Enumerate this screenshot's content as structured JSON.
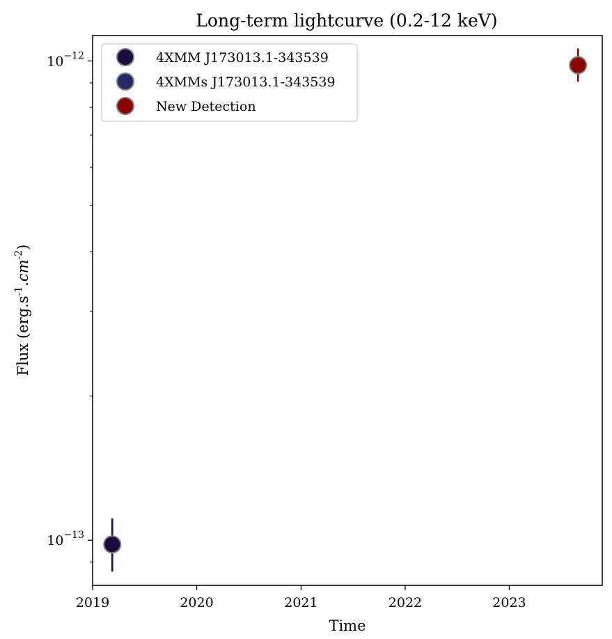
{
  "chart_data": {
    "type": "scatter",
    "title": "Long-term lightcurve (0.2-12 keV)",
    "xlabel": "Time",
    "ylabel": "Flux (erg.s",
    "ylabel_unit_parts": [
      "-1",
      ".cm",
      "-2",
      ")"
    ],
    "y_scale": "log",
    "xlim": [
      "2019-01-01",
      "2023-11-23"
    ],
    "ylim": [
      8.05e-14,
      1.13e-12
    ],
    "x_ticks": [
      "2019",
      "2020",
      "2021",
      "2022",
      "2023"
    ],
    "y_major_ticks": [
      {
        "value": 1e-13,
        "base": "10",
        "exp": "−13"
      },
      {
        "value": 1e-12,
        "base": "10",
        "exp": "−12"
      }
    ],
    "grid": false,
    "legend_position": "top-left",
    "series": [
      {
        "name": "4XMM J173013.1-343539",
        "color": "#1a0a3d",
        "points": [
          {
            "x": "2019-03-11",
            "y": 9.8e-14,
            "y_low": 8.6e-14,
            "y_high": 1.11e-13
          }
        ]
      },
      {
        "name": "4XMMs J173013.1-343539",
        "color": "#252a66",
        "points": []
      },
      {
        "name": "New Detection",
        "color": "#8b0000",
        "points": [
          {
            "x": "2023-08-30",
            "y": 9.8e-13,
            "y_low": 9.05e-13,
            "y_high": 1.062e-12
          }
        ]
      }
    ]
  }
}
